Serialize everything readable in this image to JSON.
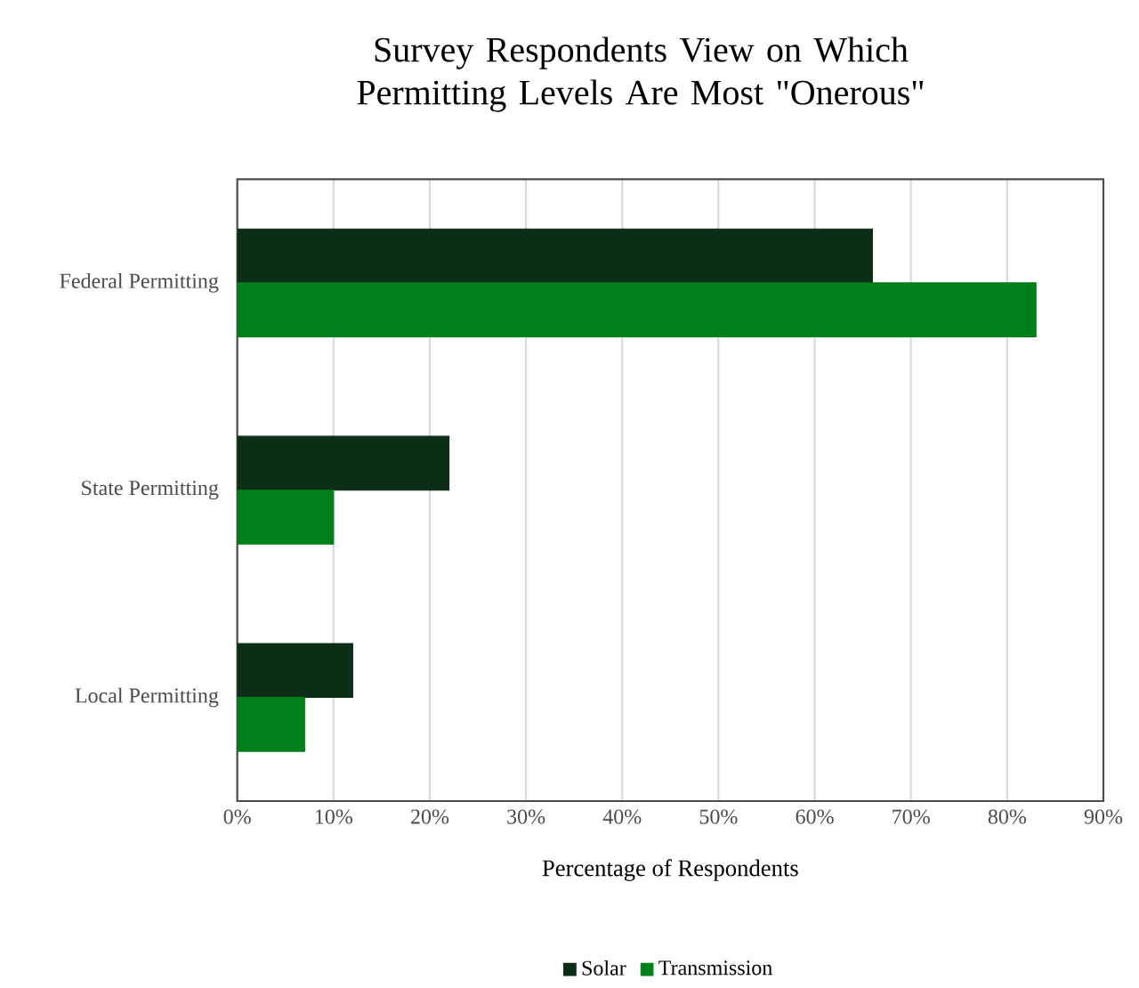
{
  "chart_data": {
    "type": "bar",
    "orientation": "horizontal",
    "title": "Survey Respondents View on Which Permitting Levels Are Most \"Onerous\"",
    "xlabel": "Percentage of Respondents",
    "categories": [
      "Federal Permitting",
      "State Permitting",
      "Local Permitting"
    ],
    "series": [
      {
        "name": "Solar",
        "color": "#0c2e17",
        "values": [
          66,
          22,
          12
        ]
      },
      {
        "name": "Transmission",
        "color": "#00801a",
        "values": [
          83,
          10,
          7
        ]
      }
    ],
    "xlim": [
      0,
      90
    ],
    "xticks": [
      {
        "value": 0,
        "label": "0%"
      },
      {
        "value": 10,
        "label": "10%"
      },
      {
        "value": 20,
        "label": "20%"
      },
      {
        "value": 30,
        "label": "30%"
      },
      {
        "value": 40,
        "label": "40%"
      },
      {
        "value": 50,
        "label": "50%"
      },
      {
        "value": 60,
        "label": "60%"
      },
      {
        "value": 70,
        "label": "70%"
      },
      {
        "value": 80,
        "label": "80%"
      },
      {
        "value": 90,
        "label": "90%"
      }
    ],
    "grid": "x",
    "legend": "bottom"
  }
}
